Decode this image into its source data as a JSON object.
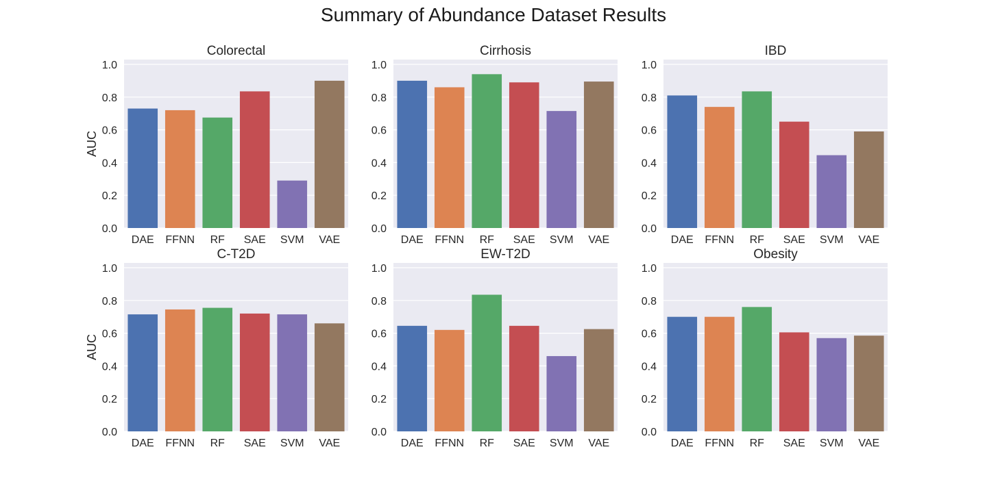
{
  "figure": {
    "title": "Summary of Abundance Dataset Results",
    "background": "#ffffff",
    "panel_background": "#eaeaf2",
    "grid_color": "#ffffff",
    "palette": [
      "#4c72b0",
      "#dd8452",
      "#55a868",
      "#c44e52",
      "#8172b3",
      "#937860"
    ]
  },
  "chart_data": [
    {
      "type": "bar",
      "title": "Colorectal",
      "categories": [
        "DAE",
        "FFNN",
        "RF",
        "SAE",
        "SVM",
        "VAE"
      ],
      "values": [
        0.73,
        0.72,
        0.675,
        0.835,
        0.29,
        0.9
      ],
      "xlabel": "",
      "ylabel": "AUC",
      "ylim": [
        0,
        1.0
      ],
      "yticks": [
        "0.0",
        "0.2",
        "0.4",
        "0.6",
        "0.8",
        "1.0"
      ],
      "grid": true
    },
    {
      "type": "bar",
      "title": "Cirrhosis",
      "categories": [
        "DAE",
        "FFNN",
        "RF",
        "SAE",
        "SVM",
        "VAE"
      ],
      "values": [
        0.9,
        0.86,
        0.94,
        0.89,
        0.715,
        0.895
      ],
      "xlabel": "",
      "ylabel": "",
      "ylim": [
        0,
        1.0
      ],
      "yticks": [
        "0.0",
        "0.2",
        "0.4",
        "0.6",
        "0.8",
        "1.0"
      ],
      "grid": true
    },
    {
      "type": "bar",
      "title": "IBD",
      "categories": [
        "DAE",
        "FFNN",
        "RF",
        "SAE",
        "SVM",
        "VAE"
      ],
      "values": [
        0.81,
        0.74,
        0.835,
        0.65,
        0.445,
        0.59
      ],
      "xlabel": "",
      "ylabel": "",
      "ylim": [
        0,
        1.0
      ],
      "yticks": [
        "0.0",
        "0.2",
        "0.4",
        "0.6",
        "0.8",
        "1.0"
      ],
      "grid": true
    },
    {
      "type": "bar",
      "title": "C-T2D",
      "categories": [
        "DAE",
        "FFNN",
        "RF",
        "SAE",
        "SVM",
        "VAE"
      ],
      "values": [
        0.715,
        0.745,
        0.755,
        0.72,
        0.715,
        0.66
      ],
      "xlabel": "",
      "ylabel": "AUC",
      "ylim": [
        0,
        1.0
      ],
      "yticks": [
        "0.0",
        "0.2",
        "0.4",
        "0.6",
        "0.8",
        "1.0"
      ],
      "grid": true
    },
    {
      "type": "bar",
      "title": "EW-T2D",
      "categories": [
        "DAE",
        "FFNN",
        "RF",
        "SAE",
        "SVM",
        "VAE"
      ],
      "values": [
        0.645,
        0.62,
        0.835,
        0.645,
        0.46,
        0.625
      ],
      "xlabel": "",
      "ylabel": "",
      "ylim": [
        0,
        1.0
      ],
      "yticks": [
        "0.0",
        "0.2",
        "0.4",
        "0.6",
        "0.8",
        "1.0"
      ],
      "grid": true
    },
    {
      "type": "bar",
      "title": "Obesity",
      "categories": [
        "DAE",
        "FFNN",
        "RF",
        "SAE",
        "SVM",
        "VAE"
      ],
      "values": [
        0.7,
        0.7,
        0.76,
        0.605,
        0.57,
        0.585
      ],
      "xlabel": "",
      "ylabel": "",
      "ylim": [
        0,
        1.0
      ],
      "yticks": [
        "0.0",
        "0.2",
        "0.4",
        "0.6",
        "0.8",
        "1.0"
      ],
      "grid": true
    }
  ]
}
